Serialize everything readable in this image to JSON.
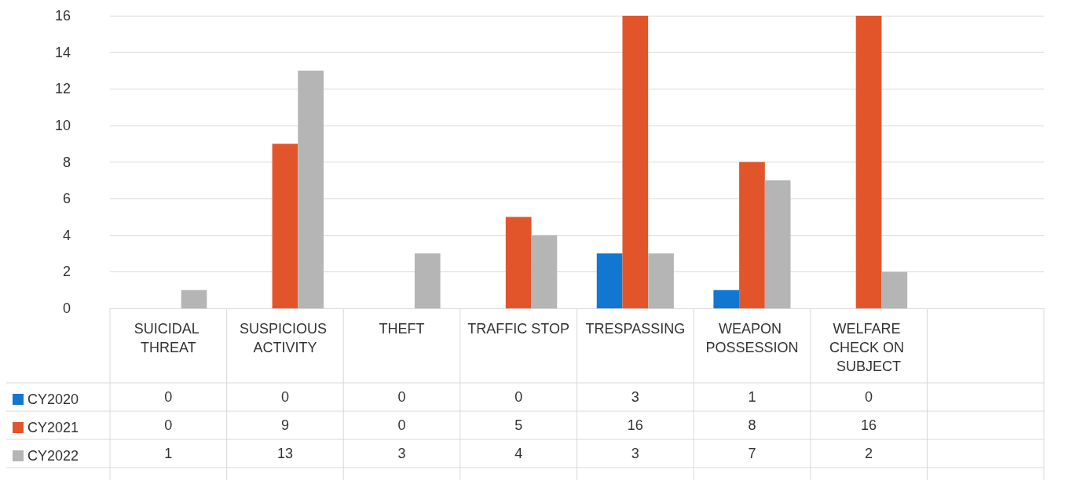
{
  "chart_data": {
    "type": "bar",
    "categories": [
      "SUICIDAL THREAT",
      "SUSPICIOUS ACTIVITY",
      "THEFT",
      "TRAFFIC STOP",
      "TRESPASSING",
      "WEAPON POSSESSION",
      "WELFARE CHECK ON SUBJECT",
      null
    ],
    "series": [
      {
        "name": "CY2020",
        "color": "#1177d1",
        "values": [
          0,
          0,
          0,
          0,
          3,
          1,
          0,
          null
        ]
      },
      {
        "name": "CY2021",
        "color": "#e2552b",
        "values": [
          0,
          9,
          0,
          5,
          16,
          8,
          16,
          null
        ]
      },
      {
        "name": "CY2022",
        "color": "#b5b5b5",
        "values": [
          1,
          13,
          3,
          4,
          3,
          7,
          2,
          null
        ]
      }
    ],
    "ylim": [
      0,
      16
    ],
    "yticks": [
      0,
      2,
      4,
      6,
      8,
      10,
      12,
      14,
      16
    ],
    "grid": "y",
    "legend": "bottom left",
    "data_labels": true
  }
}
